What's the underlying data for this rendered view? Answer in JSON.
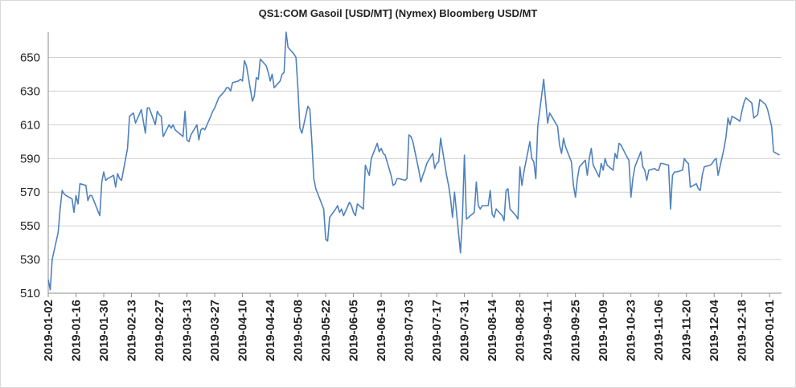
{
  "chart_data": {
    "type": "line",
    "title": "QS1:COM Gasoil [USD/MT] (Nymex) Bloomberg USD/MT",
    "xlabel": "",
    "ylabel": "",
    "ylim": [
      510,
      665
    ],
    "yticks": [
      510,
      530,
      550,
      570,
      590,
      610,
      630,
      650
    ],
    "xlim": [
      "2019-01-02",
      "2020-01-07"
    ],
    "xticks": [
      "2019-01-02",
      "2019-01-16",
      "2019-01-30",
      "2019-02-13",
      "2019-02-27",
      "2019-03-13",
      "2019-03-27",
      "2019-04-10",
      "2019-04-24",
      "2019-05-08",
      "2019-05-22",
      "2019-06-05",
      "2019-06-19",
      "2019-07-03",
      "2019-07-17",
      "2019-07-31",
      "2019-08-14",
      "2019-08-28",
      "2019-09-11",
      "2019-09-25",
      "2019-10-09",
      "2019-10-23",
      "2019-11-06",
      "2019-11-20",
      "2019-12-04",
      "2019-12-18",
      "2020-01-01"
    ],
    "grid": "horizontal",
    "line_color": "#4f81bd",
    "series": [
      {
        "points": [
          [
            "2019-01-02",
            518
          ],
          [
            "2019-01-03",
            512
          ],
          [
            "2019-01-04",
            530
          ],
          [
            "2019-01-07",
            546
          ],
          [
            "2019-01-08",
            560
          ],
          [
            "2019-01-09",
            571
          ],
          [
            "2019-01-10",
            569
          ],
          [
            "2019-01-11",
            568
          ],
          [
            "2019-01-14",
            566
          ],
          [
            "2019-01-15",
            558
          ],
          [
            "2019-01-16",
            568
          ],
          [
            "2019-01-17",
            563
          ],
          [
            "2019-01-18",
            575
          ],
          [
            "2019-01-21",
            574
          ],
          [
            "2019-01-22",
            565
          ],
          [
            "2019-01-23",
            568
          ],
          [
            "2019-01-24",
            568
          ],
          [
            "2019-01-25",
            565
          ],
          [
            "2019-01-28",
            556
          ],
          [
            "2019-01-29",
            576
          ],
          [
            "2019-01-30",
            582
          ],
          [
            "2019-01-31",
            577
          ],
          [
            "2019-02-01",
            578
          ],
          [
            "2019-02-04",
            580
          ],
          [
            "2019-02-05",
            573
          ],
          [
            "2019-02-06",
            581
          ],
          [
            "2019-02-07",
            578
          ],
          [
            "2019-02-08",
            577
          ],
          [
            "2019-02-11",
            596
          ],
          [
            "2019-02-12",
            615
          ],
          [
            "2019-02-13",
            616
          ],
          [
            "2019-02-14",
            617
          ],
          [
            "2019-02-15",
            611
          ],
          [
            "2019-02-18",
            619
          ],
          [
            "2019-02-19",
            612
          ],
          [
            "2019-02-20",
            605
          ],
          [
            "2019-02-21",
            620
          ],
          [
            "2019-02-22",
            620
          ],
          [
            "2019-02-25",
            610
          ],
          [
            "2019-02-26",
            618
          ],
          [
            "2019-02-27",
            616
          ],
          [
            "2019-02-28",
            615
          ],
          [
            "2019-03-01",
            603
          ],
          [
            "2019-03-04",
            610
          ],
          [
            "2019-03-05",
            608
          ],
          [
            "2019-03-06",
            610
          ],
          [
            "2019-03-07",
            607
          ],
          [
            "2019-03-08",
            606
          ],
          [
            "2019-03-11",
            603
          ],
          [
            "2019-03-12",
            618
          ],
          [
            "2019-03-13",
            601
          ],
          [
            "2019-03-14",
            600
          ],
          [
            "2019-03-15",
            604
          ],
          [
            "2019-03-18",
            610
          ],
          [
            "2019-03-19",
            601
          ],
          [
            "2019-03-20",
            607
          ],
          [
            "2019-03-21",
            608
          ],
          [
            "2019-03-22",
            607
          ],
          [
            "2019-03-25",
            615
          ],
          [
            "2019-03-26",
            618
          ],
          [
            "2019-03-27",
            620
          ],
          [
            "2019-03-28",
            623
          ],
          [
            "2019-03-29",
            626
          ],
          [
            "2019-04-01",
            630
          ],
          [
            "2019-04-02",
            632
          ],
          [
            "2019-04-03",
            632
          ],
          [
            "2019-04-04",
            630
          ],
          [
            "2019-04-05",
            635
          ],
          [
            "2019-04-08",
            636
          ],
          [
            "2019-04-09",
            637
          ],
          [
            "2019-04-10",
            636
          ],
          [
            "2019-04-11",
            648
          ],
          [
            "2019-04-12",
            645
          ],
          [
            "2019-04-15",
            624
          ],
          [
            "2019-04-16",
            627
          ],
          [
            "2019-04-17",
            638
          ],
          [
            "2019-04-18",
            637
          ],
          [
            "2019-04-19",
            649
          ],
          [
            "2019-04-22",
            645
          ],
          [
            "2019-04-23",
            641
          ],
          [
            "2019-04-24",
            636
          ],
          [
            "2019-04-25",
            640
          ],
          [
            "2019-04-26",
            632
          ],
          [
            "2019-04-29",
            636
          ],
          [
            "2019-04-30",
            640
          ],
          [
            "2019-05-01",
            641
          ],
          [
            "2019-05-02",
            665
          ],
          [
            "2019-05-03",
            656
          ],
          [
            "2019-05-06",
            652
          ],
          [
            "2019-05-07",
            650
          ],
          [
            "2019-05-08",
            631
          ],
          [
            "2019-05-09",
            608
          ],
          [
            "2019-05-10",
            605
          ],
          [
            "2019-05-13",
            621
          ],
          [
            "2019-05-14",
            619
          ],
          [
            "2019-05-15",
            600
          ],
          [
            "2019-05-16",
            578
          ],
          [
            "2019-05-17",
            572
          ],
          [
            "2019-05-20",
            563
          ],
          [
            "2019-05-21",
            560
          ],
          [
            "2019-05-22",
            542
          ],
          [
            "2019-05-23",
            541
          ],
          [
            "2019-05-24",
            555
          ],
          [
            "2019-05-27",
            560
          ],
          [
            "2019-05-28",
            562
          ],
          [
            "2019-05-29",
            558
          ],
          [
            "2019-05-30",
            560
          ],
          [
            "2019-05-31",
            556
          ],
          [
            "2019-06-03",
            564
          ],
          [
            "2019-06-04",
            562
          ],
          [
            "2019-06-05",
            558
          ],
          [
            "2019-06-06",
            556
          ],
          [
            "2019-06-07",
            563
          ],
          [
            "2019-06-10",
            560
          ],
          [
            "2019-06-11",
            586
          ],
          [
            "2019-06-12",
            583
          ],
          [
            "2019-06-13",
            580
          ],
          [
            "2019-06-14",
            590
          ],
          [
            "2019-06-17",
            599
          ],
          [
            "2019-06-18",
            594
          ],
          [
            "2019-06-19",
            596
          ],
          [
            "2019-06-20",
            593
          ],
          [
            "2019-06-21",
            592
          ],
          [
            "2019-06-24",
            580
          ],
          [
            "2019-06-25",
            574
          ],
          [
            "2019-06-26",
            575
          ],
          [
            "2019-06-27",
            578
          ],
          [
            "2019-06-28",
            578
          ],
          [
            "2019-07-01",
            577
          ],
          [
            "2019-07-02",
            578
          ],
          [
            "2019-07-03",
            604
          ],
          [
            "2019-07-04",
            603
          ],
          [
            "2019-07-05",
            600
          ],
          [
            "2019-07-08",
            583
          ],
          [
            "2019-07-09",
            576
          ],
          [
            "2019-07-10",
            580
          ],
          [
            "2019-07-11",
            583
          ],
          [
            "2019-07-12",
            587
          ],
          [
            "2019-07-15",
            593
          ],
          [
            "2019-07-16",
            584
          ],
          [
            "2019-07-17",
            587
          ],
          [
            "2019-07-18",
            588
          ],
          [
            "2019-07-19",
            602
          ],
          [
            "2019-07-22",
            580
          ],
          [
            "2019-07-23",
            574
          ],
          [
            "2019-07-24",
            566
          ],
          [
            "2019-07-25",
            555
          ],
          [
            "2019-07-26",
            570
          ],
          [
            "2019-07-29",
            534
          ],
          [
            "2019-07-30",
            556
          ],
          [
            "2019-07-31",
            592
          ],
          [
            "2019-08-01",
            554
          ],
          [
            "2019-08-02",
            555
          ],
          [
            "2019-08-05",
            558
          ],
          [
            "2019-08-06",
            576
          ],
          [
            "2019-08-07",
            562
          ],
          [
            "2019-08-08",
            560
          ],
          [
            "2019-08-09",
            562
          ],
          [
            "2019-08-12",
            562
          ],
          [
            "2019-08-13",
            571
          ],
          [
            "2019-08-14",
            557
          ],
          [
            "2019-08-15",
            555
          ],
          [
            "2019-08-16",
            560
          ],
          [
            "2019-08-19",
            556
          ],
          [
            "2019-08-20",
            553
          ],
          [
            "2019-08-21",
            571
          ],
          [
            "2019-08-22",
            572
          ],
          [
            "2019-08-23",
            560
          ],
          [
            "2019-08-26",
            556
          ],
          [
            "2019-08-27",
            554
          ],
          [
            "2019-08-28",
            585
          ],
          [
            "2019-08-29",
            574
          ],
          [
            "2019-08-30",
            582
          ],
          [
            "2019-09-02",
            600
          ],
          [
            "2019-09-03",
            590
          ],
          [
            "2019-09-04",
            588
          ],
          [
            "2019-09-05",
            578
          ],
          [
            "2019-09-06",
            609
          ],
          [
            "2019-09-09",
            637
          ],
          [
            "2019-09-10",
            624
          ],
          [
            "2019-09-11",
            611
          ],
          [
            "2019-09-12",
            617
          ],
          [
            "2019-09-13",
            615
          ],
          [
            "2019-09-16",
            609
          ],
          [
            "2019-09-17",
            598
          ],
          [
            "2019-09-18",
            593
          ],
          [
            "2019-09-19",
            602
          ],
          [
            "2019-09-20",
            597
          ],
          [
            "2019-09-23",
            588
          ],
          [
            "2019-09-24",
            574
          ],
          [
            "2019-09-25",
            567
          ],
          [
            "2019-09-26",
            578
          ],
          [
            "2019-09-27",
            585
          ],
          [
            "2019-09-30",
            589
          ],
          [
            "2019-10-01",
            580
          ],
          [
            "2019-10-02",
            590
          ],
          [
            "2019-10-03",
            596
          ],
          [
            "2019-10-04",
            586
          ],
          [
            "2019-10-07",
            579
          ],
          [
            "2019-10-08",
            587
          ],
          [
            "2019-10-09",
            583
          ],
          [
            "2019-10-10",
            590
          ],
          [
            "2019-10-11",
            586
          ],
          [
            "2019-10-14",
            583
          ],
          [
            "2019-10-15",
            593
          ],
          [
            "2019-10-16",
            590
          ],
          [
            "2019-10-17",
            599
          ],
          [
            "2019-10-18",
            598
          ],
          [
            "2019-10-21",
            591
          ],
          [
            "2019-10-22",
            589
          ],
          [
            "2019-10-23",
            567
          ],
          [
            "2019-10-24",
            578
          ],
          [
            "2019-10-25",
            585
          ],
          [
            "2019-10-28",
            594
          ],
          [
            "2019-10-29",
            585
          ],
          [
            "2019-10-30",
            583
          ],
          [
            "2019-10-31",
            577
          ],
          [
            "2019-11-01",
            583
          ],
          [
            "2019-11-04",
            584
          ],
          [
            "2019-11-05",
            583
          ],
          [
            "2019-11-06",
            583
          ],
          [
            "2019-11-07",
            587
          ],
          [
            "2019-11-08",
            587
          ],
          [
            "2019-11-11",
            586
          ],
          [
            "2019-11-12",
            560
          ],
          [
            "2019-11-13",
            580
          ],
          [
            "2019-11-14",
            582
          ],
          [
            "2019-11-15",
            582
          ],
          [
            "2019-11-18",
            583
          ],
          [
            "2019-11-19",
            590
          ],
          [
            "2019-11-20",
            588
          ],
          [
            "2019-11-21",
            587
          ],
          [
            "2019-11-22",
            573
          ],
          [
            "2019-11-25",
            575
          ],
          [
            "2019-11-26",
            572
          ],
          [
            "2019-11-27",
            571
          ],
          [
            "2019-11-28",
            580
          ],
          [
            "2019-11-29",
            585
          ],
          [
            "2019-12-02",
            586
          ],
          [
            "2019-12-03",
            587
          ],
          [
            "2019-12-04",
            589
          ],
          [
            "2019-12-05",
            590
          ],
          [
            "2019-12-06",
            580
          ],
          [
            "2019-12-09",
            596
          ],
          [
            "2019-12-10",
            603
          ],
          [
            "2019-12-11",
            614
          ],
          [
            "2019-12-12",
            610
          ],
          [
            "2019-12-13",
            615
          ],
          [
            "2019-12-16",
            613
          ],
          [
            "2019-12-17",
            612
          ],
          [
            "2019-12-18",
            618
          ],
          [
            "2019-12-19",
            623
          ],
          [
            "2019-12-20",
            626
          ],
          [
            "2019-12-23",
            623
          ],
          [
            "2019-12-24",
            614
          ],
          [
            "2019-12-26",
            616
          ],
          [
            "2019-12-27",
            625
          ],
          [
            "2019-12-30",
            622
          ],
          [
            "2019-12-31",
            619
          ],
          [
            "2020-01-02",
            609
          ],
          [
            "2020-01-03",
            594
          ],
          [
            "2020-01-06",
            592
          ]
        ]
      }
    ]
  }
}
